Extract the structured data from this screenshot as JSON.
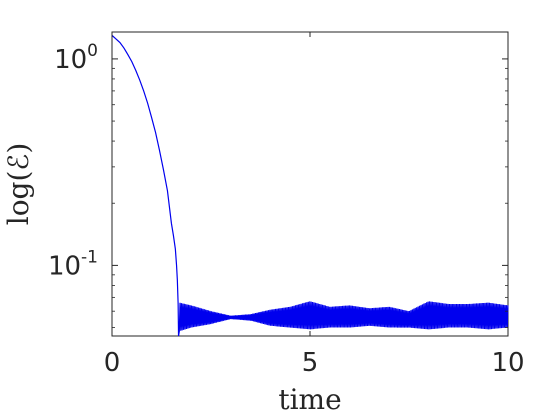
{
  "chart_data": {
    "type": "line",
    "xlabel": "time",
    "ylabel": "log(ℰ)",
    "xlim": [
      0,
      10
    ],
    "ylim": [
      0.0455,
      1.35
    ],
    "yscale": "log",
    "grid": false,
    "legend": "none",
    "line_color": "#0000ee",
    "x_ticks": [
      {
        "value": 0,
        "label": "0"
      },
      {
        "value": 5,
        "label": "5"
      },
      {
        "value": 10,
        "label": "10"
      }
    ],
    "y_ticks": [
      {
        "value": 1,
        "base": "10",
        "exp": "0"
      },
      {
        "value": 0.1,
        "base": "10",
        "exp": "-1"
      }
    ],
    "series": [
      {
        "x": [
          0,
          0.1,
          0.2,
          0.3,
          0.4,
          0.5,
          0.6,
          0.7,
          0.8,
          0.9,
          1.0,
          1.1,
          1.2,
          1.3,
          1.4,
          1.5,
          1.55,
          1.6,
          1.63,
          1.65,
          1.67,
          1.68
        ],
        "y": [
          1.3,
          1.25,
          1.2,
          1.13,
          1.05,
          0.97,
          0.88,
          0.79,
          0.7,
          0.61,
          0.52,
          0.44,
          0.36,
          0.29,
          0.23,
          0.16,
          0.14,
          0.12,
          0.1,
          0.085,
          0.065,
          0.045
        ]
      }
    ],
    "oscillation_envelope": {
      "x": [
        1.7,
        2.0,
        2.5,
        3.0,
        3.5,
        4.0,
        4.5,
        5.0,
        5.5,
        6.0,
        6.5,
        7.0,
        7.5,
        8.0,
        8.5,
        9.0,
        9.5,
        10.0
      ],
      "y_low": [
        0.048,
        0.05,
        0.052,
        0.055,
        0.054,
        0.051,
        0.05,
        0.049,
        0.05,
        0.05,
        0.051,
        0.05,
        0.05,
        0.049,
        0.05,
        0.05,
        0.049,
        0.05
      ],
      "y_high": [
        0.066,
        0.064,
        0.06,
        0.057,
        0.058,
        0.061,
        0.063,
        0.067,
        0.063,
        0.064,
        0.062,
        0.063,
        0.06,
        0.067,
        0.065,
        0.065,
        0.066,
        0.064
      ]
    }
  }
}
